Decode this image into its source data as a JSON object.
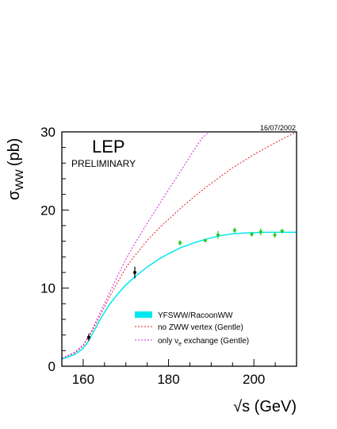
{
  "date": "16/07/2002",
  "experiment": "LEP",
  "status": "PRELIMINARY",
  "colors": {
    "preliminary": "#22dd22",
    "band": "#00e8f0",
    "no_zww": "#e02020",
    "only_nue": "#e020e0",
    "data_early": "#000000",
    "data_late": "#22cc22"
  },
  "chart_data": {
    "type": "line",
    "xlabel": "√s (GeV)",
    "ylabel_main": "σ",
    "ylabel_sub": "WW",
    "ylabel_unit": "(pb)",
    "xlim": [
      155,
      210
    ],
    "ylim": [
      0,
      30
    ],
    "xticks": [
      160,
      180,
      200
    ],
    "xtick_labels": [
      "160",
      "180",
      "200"
    ],
    "yticks": [
      0,
      10,
      20,
      30
    ],
    "ytick_labels": [
      "0",
      "10",
      "20",
      "30"
    ],
    "grid": false,
    "legend_position": "bottom-right",
    "legend": [
      {
        "key": "ysww",
        "label": "YFSWW/RacoonWW"
      },
      {
        "key": "nozww",
        "label": "no ZWW vertex (Gentle)"
      },
      {
        "key": "onlynue",
        "label_prefix": "only ν",
        "label_sub": "e",
        "label_suffix": " exchange (Gentle)"
      }
    ],
    "series": [
      {
        "name": "YFSWW/RacoonWW",
        "style": "band",
        "x": [
          155,
          158,
          160,
          161,
          162,
          163,
          164,
          166,
          168,
          170,
          172,
          175,
          178,
          180,
          183,
          186,
          189,
          192,
          195,
          198,
          200,
          203,
          206,
          210
        ],
        "y": [
          0.9,
          1.5,
          2.3,
          3.0,
          4.0,
          5.0,
          6.0,
          7.8,
          9.2,
          10.4,
          11.4,
          12.7,
          13.8,
          14.4,
          15.2,
          15.8,
          16.3,
          16.7,
          16.95,
          17.05,
          17.1,
          17.15,
          17.15,
          17.15
        ]
      },
      {
        "name": "no ZWW vertex (Gentle)",
        "style": "dashed",
        "x": [
          155,
          158,
          160,
          162,
          164,
          166,
          168,
          170,
          172,
          175,
          178,
          180,
          183,
          186,
          189,
          192,
          195,
          198,
          200,
          203,
          206,
          210
        ],
        "y": [
          1.0,
          1.7,
          2.6,
          4.4,
          6.5,
          8.7,
          10.7,
          12.6,
          14.1,
          16.1,
          17.8,
          18.8,
          20.3,
          21.7,
          23.0,
          24.2,
          25.4,
          26.4,
          27.1,
          28.0,
          28.9,
          30.0
        ]
      },
      {
        "name": "only νe exchange (Gentle)",
        "style": "dashed",
        "x": [
          155,
          158,
          160,
          162,
          164,
          166,
          168,
          170,
          172,
          175,
          178,
          180,
          183,
          186,
          188,
          189.5
        ],
        "y": [
          1.0,
          1.8,
          2.7,
          4.6,
          6.9,
          9.2,
          11.5,
          13.7,
          15.6,
          18.3,
          20.9,
          22.6,
          25.1,
          27.7,
          29.3,
          30.0
        ]
      }
    ],
    "data_points": [
      {
        "x": 161.3,
        "y": 3.7,
        "err": 0.45,
        "group": "early"
      },
      {
        "x": 172.1,
        "y": 12.0,
        "err": 0.75,
        "group": "early"
      },
      {
        "x": 182.7,
        "y": 15.8,
        "err": 0.35,
        "group": "late"
      },
      {
        "x": 188.6,
        "y": 16.1,
        "err": 0.22,
        "group": "late"
      },
      {
        "x": 191.6,
        "y": 16.8,
        "err": 0.5,
        "group": "late"
      },
      {
        "x": 195.5,
        "y": 17.4,
        "err": 0.33,
        "group": "late"
      },
      {
        "x": 199.5,
        "y": 16.9,
        "err": 0.3,
        "group": "late"
      },
      {
        "x": 201.6,
        "y": 17.2,
        "err": 0.45,
        "group": "late"
      },
      {
        "x": 204.9,
        "y": 16.8,
        "err": 0.35,
        "group": "late"
      },
      {
        "x": 206.6,
        "y": 17.3,
        "err": 0.28,
        "group": "late"
      }
    ]
  }
}
